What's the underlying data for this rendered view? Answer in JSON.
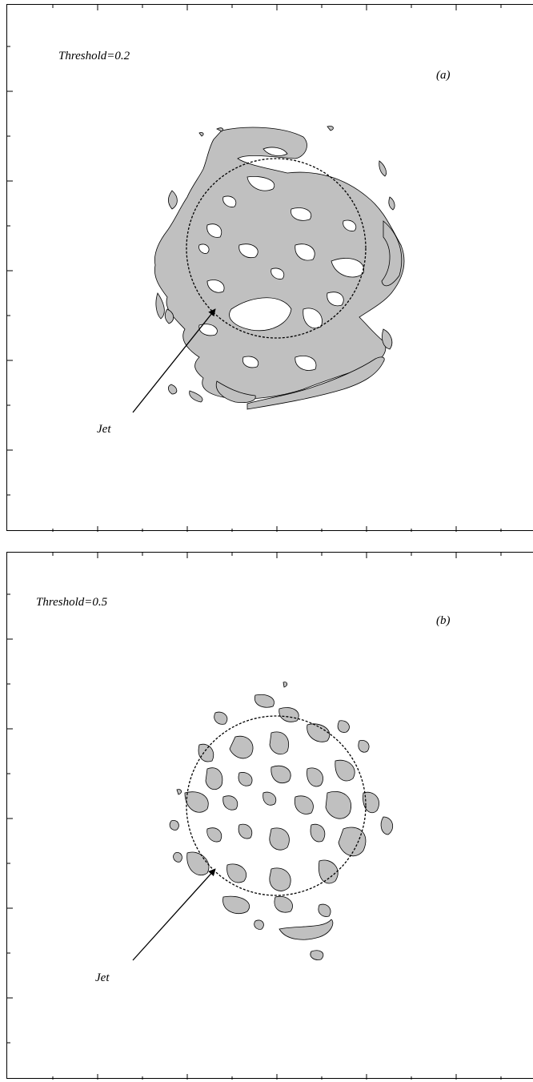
{
  "panels": [
    {
      "id": "a",
      "threshold_label": "Threshold=0.2",
      "panel_label": "(a)",
      "arrow_label": "Jet",
      "fill_color": "#c0c0c0"
    },
    {
      "id": "b",
      "threshold_label": "Threshold=0.5",
      "panel_label": "(b)",
      "arrow_label": "Jet",
      "fill_color": "#c0c0c0"
    }
  ]
}
